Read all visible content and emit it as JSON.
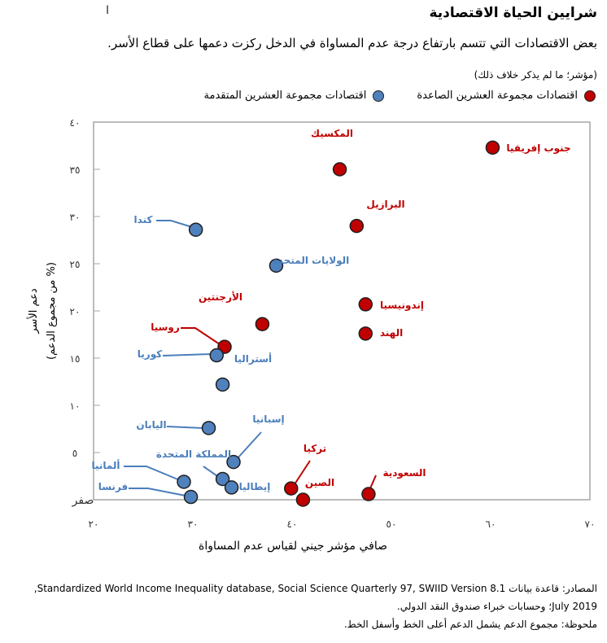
{
  "chart_data": {
    "type": "scatter",
    "title": "شرايين الحياة الاقتصادية",
    "subtitle": "بعض الاقتصادات التي تتسم بارتفاع درجة عدم المساواة في الدخل ركزت دعمها على قطاع الأسر.",
    "unit_note": "(مؤشر؛ ما لم يذكر خلاف ذلك)",
    "xlabel": "صافي مؤشر جيني لقياس عدم المساواة",
    "ylabel": [
      "دعم الأسر",
      "(% من مجموع الدعم)"
    ],
    "xlim": [
      20,
      70
    ],
    "ylim": [
      0,
      40
    ],
    "x_ticks": [
      20,
      30,
      40,
      50,
      60,
      70
    ],
    "x_tick_labels": [
      "٢٠",
      "٣٠",
      "٤٠",
      "٥٠",
      "٦٠",
      "٧٠"
    ],
    "y_ticks": [
      0,
      5,
      10,
      15,
      20,
      25,
      30,
      35,
      40
    ],
    "y_tick_labels": [
      "صفر",
      "٥",
      "١٠",
      "١٥",
      "٢٠",
      "٢٥",
      "٣٠",
      "٣٥",
      "٤٠"
    ],
    "grid": false,
    "legend_position": "top",
    "series": [
      {
        "name": "اقتصادات مجموعة العشرين الصاعدة",
        "color": "#c00000",
        "points": [
          {
            "label": "جنوب إفريقيا",
            "x": 60.2,
            "y": 37.3
          },
          {
            "label": "المكسيك",
            "x": 44.8,
            "y": 35.0
          },
          {
            "label": "البرازيل",
            "x": 46.5,
            "y": 29.0
          },
          {
            "label": "إندونيسيا",
            "x": 47.4,
            "y": 20.7
          },
          {
            "label": "الهند",
            "x": 47.4,
            "y": 17.6
          },
          {
            "label": "الأرجنتين",
            "x": 37.0,
            "y": 18.6
          },
          {
            "label": "روسيا",
            "x": 33.2,
            "y": 16.2
          },
          {
            "label": "تركيا",
            "x": 39.9,
            "y": 1.2
          },
          {
            "label": "الصين",
            "x": 41.1,
            "y": 0.0
          },
          {
            "label": "السعودية",
            "x": 47.7,
            "y": 0.6
          }
        ]
      },
      {
        "name": "اقتصادات مجموعة العشرين المتقدمة",
        "color": "#4f81bd",
        "points": [
          {
            "label": "كندا",
            "x": 30.3,
            "y": 28.6
          },
          {
            "label": "الولايات المتحدة",
            "x": 38.4,
            "y": 24.8
          },
          {
            "label": "كوريا",
            "x": 32.4,
            "y": 15.3
          },
          {
            "label": "أستراليا",
            "x": 33.0,
            "y": 12.2
          },
          {
            "label": "اليابان",
            "x": 31.6,
            "y": 7.6
          },
          {
            "label": "إسبانيا",
            "x": 34.1,
            "y": 4.0
          },
          {
            "label": "المملكة المتحدة",
            "x": 33.0,
            "y": 2.2
          },
          {
            "label": "إيطاليا",
            "x": 33.9,
            "y": 1.3
          },
          {
            "label": "ألمانيا",
            "x": 29.1,
            "y": 1.9
          },
          {
            "label": "فرنسا",
            "x": 29.8,
            "y": 0.3
          }
        ]
      }
    ]
  },
  "notes": {
    "source_line1": "المصادر: قاعدة بيانات Standardized World Income Inequality database, Social Science Quarterly 97, SWIID Version 8.1,",
    "source_line2": "July 2019؛ وحسابات خبراء صندوق النقد الدولي.",
    "note": "ملحوظة: مجموع الدعم يشمل الدعم أعلى الخط وأسفل الخط."
  },
  "colors": {
    "red_label": "#c00000",
    "blue_label": "#4a7ebb",
    "axis": "#a6a6a6"
  }
}
